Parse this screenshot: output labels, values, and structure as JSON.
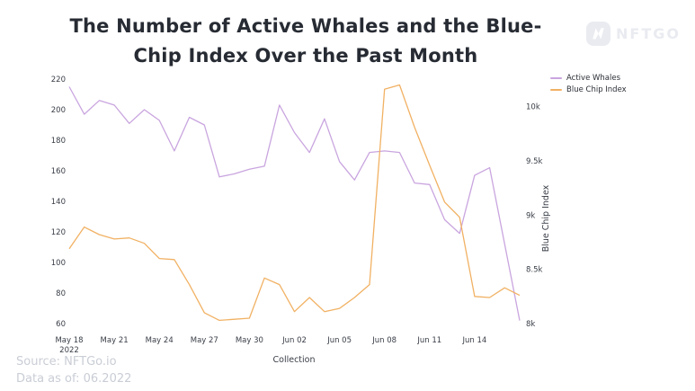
{
  "header": {
    "title_line1": "The Number of Active Whales and the Blue-",
    "title_line2": "Chip Index Over the Past Month"
  },
  "logo": {
    "text": "NFTGO"
  },
  "footer": {
    "source": "Source: NFTGo.io",
    "data_as_of": "Data as of: 06.2022"
  },
  "chart_data": {
    "type": "line",
    "title": "The Number of Active Whales and the Blue-Chip Index Over the Past Month",
    "x": [
      "May 18",
      "May 19",
      "May 20",
      "May 21",
      "May 22",
      "May 23",
      "May 24",
      "May 25",
      "May 26",
      "May 27",
      "May 28",
      "May 29",
      "May 30",
      "May 31",
      "Jun 01",
      "Jun 02",
      "Jun 03",
      "Jun 04",
      "Jun 05",
      "Jun 06",
      "Jun 07",
      "Jun 08",
      "Jun 09",
      "Jun 10",
      "Jun 11",
      "Jun 12",
      "Jun 13",
      "Jun 14",
      "Jun 15",
      "Jun 16",
      "Jun 17"
    ],
    "series": [
      {
        "name": "Active Whales",
        "axis": "left",
        "color": "#C9A5DF",
        "values": [
          215,
          197,
          206,
          203,
          191,
          200,
          193,
          173,
          195,
          190,
          156,
          158,
          161,
          163,
          203,
          185,
          172,
          194,
          166,
          154,
          172,
          173,
          172,
          152,
          151,
          128,
          119,
          157,
          162,
          112,
          62
        ]
      },
      {
        "name": "Blue Chip Index",
        "axis": "right",
        "color": "#F1B163",
        "values": [
          8690,
          8890,
          8820,
          8780,
          8790,
          8740,
          8600,
          8590,
          8360,
          8100,
          8030,
          8040,
          8050,
          8420,
          8360,
          8110,
          8240,
          8110,
          8140,
          8240,
          8360,
          10160,
          10200,
          9810,
          9460,
          9120,
          8980,
          8250,
          8240,
          8330,
          8260
        ]
      }
    ],
    "left_axis": {
      "min": 60,
      "max": 220,
      "ticks": [
        220,
        200,
        180,
        160,
        140,
        120,
        100,
        80,
        60
      ]
    },
    "right_axis": {
      "min": 8000,
      "max": 10254,
      "title": "Blue Chip Index",
      "ticks": [
        {
          "value": 10000,
          "label": "10k"
        },
        {
          "value": 9500,
          "label": "9.5k"
        },
        {
          "value": 9000,
          "label": "9k"
        },
        {
          "value": 8500,
          "label": "8.5k"
        },
        {
          "value": 8000,
          "label": "8k"
        }
      ]
    },
    "x_axis": {
      "title": "Collection",
      "year": "2022",
      "tick_every": 3,
      "tick_labels": [
        "May 18",
        "May 21",
        "May 24",
        "May 27",
        "May 30",
        "Jun 02",
        "Jun 05",
        "Jun 08",
        "Jun 11",
        "Jun 14"
      ]
    },
    "legend_position": "top-right",
    "grid": false
  }
}
